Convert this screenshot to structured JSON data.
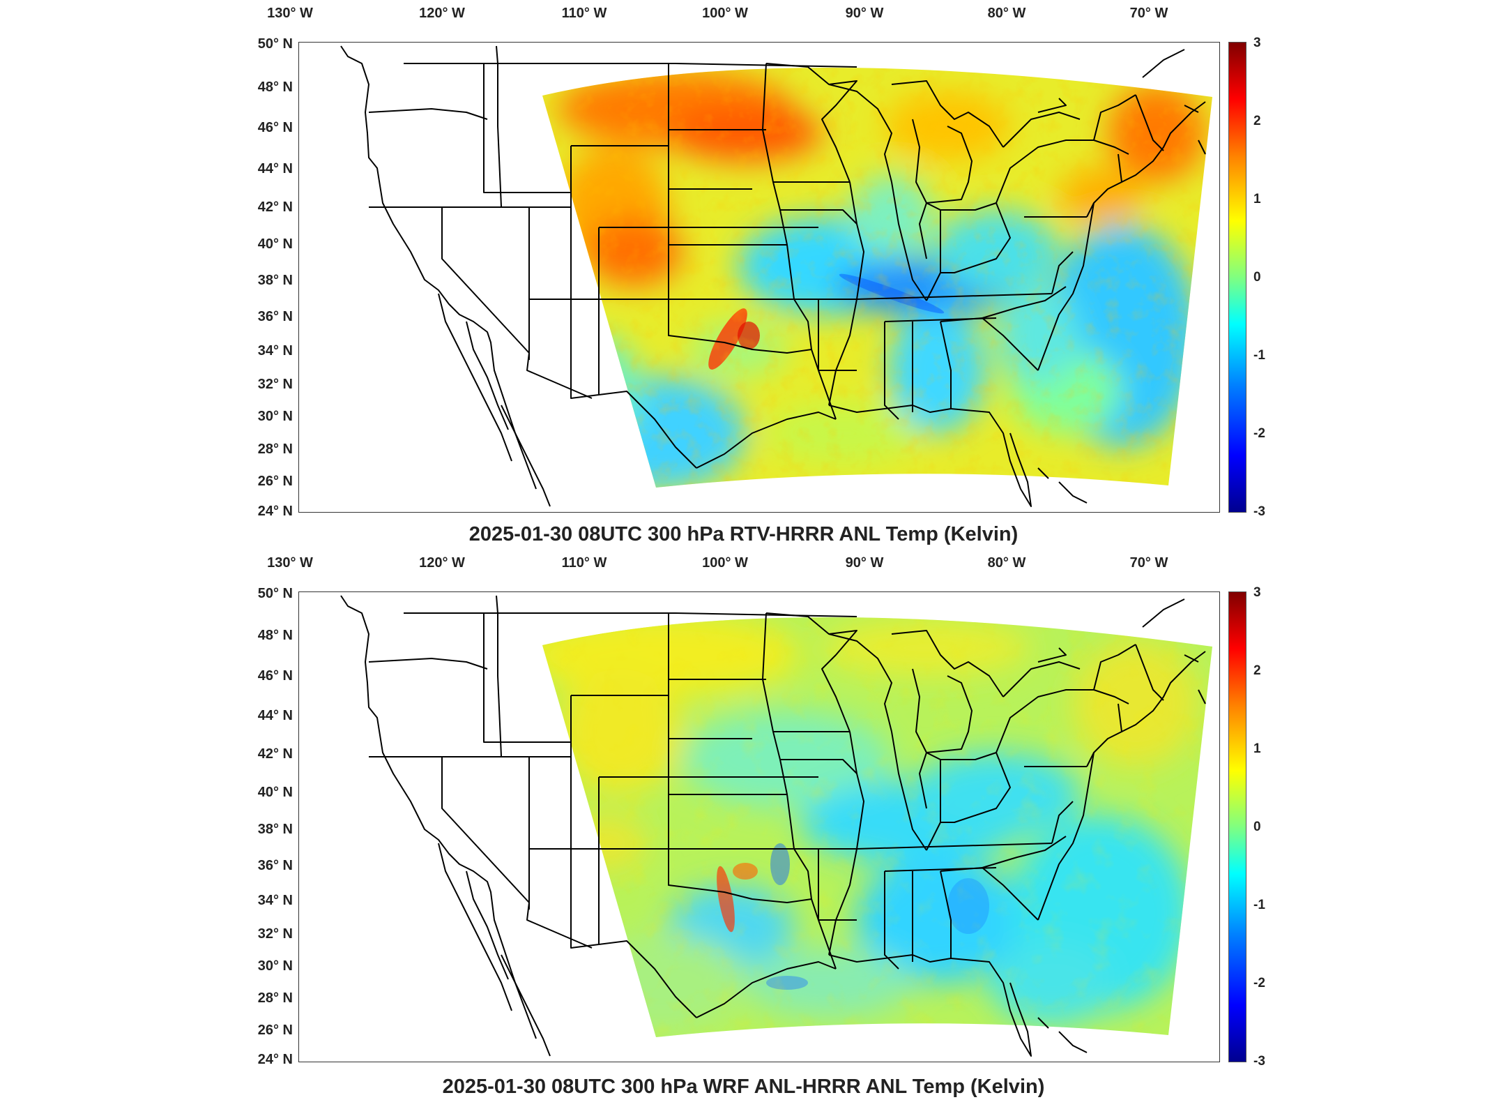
{
  "lon_ticks": [
    "130° W",
    "120° W",
    "110° W",
    "100° W",
    "90° W",
    "80° W",
    "70° W"
  ],
  "lat_ticks": [
    "50° N",
    "48° N",
    "46° N",
    "44° N",
    "42° N",
    "40° N",
    "38° N",
    "36° N",
    "34° N",
    "32° N",
    "30° N",
    "28° N",
    "26° N",
    "24° N"
  ],
  "colorbar": {
    "ticks": [
      "3",
      "2",
      "1",
      "0",
      "-1",
      "-2",
      "-3"
    ],
    "range": [
      -3,
      3
    ],
    "colormap": "jet",
    "colors": [
      "#00008f",
      "#0000ff",
      "#0080ff",
      "#00ffff",
      "#80ff80",
      "#ffff00",
      "#ff8000",
      "#ff0000",
      "#800000"
    ]
  },
  "panels": [
    {
      "title": "2025-01-30 08UTC 300 hPa RTV-HRRR ANL Temp (Kelvin)"
    },
    {
      "title": "2025-01-30 08UTC 300 hPa WRF ANL-HRRR ANL Temp (Kelvin)"
    }
  ]
}
